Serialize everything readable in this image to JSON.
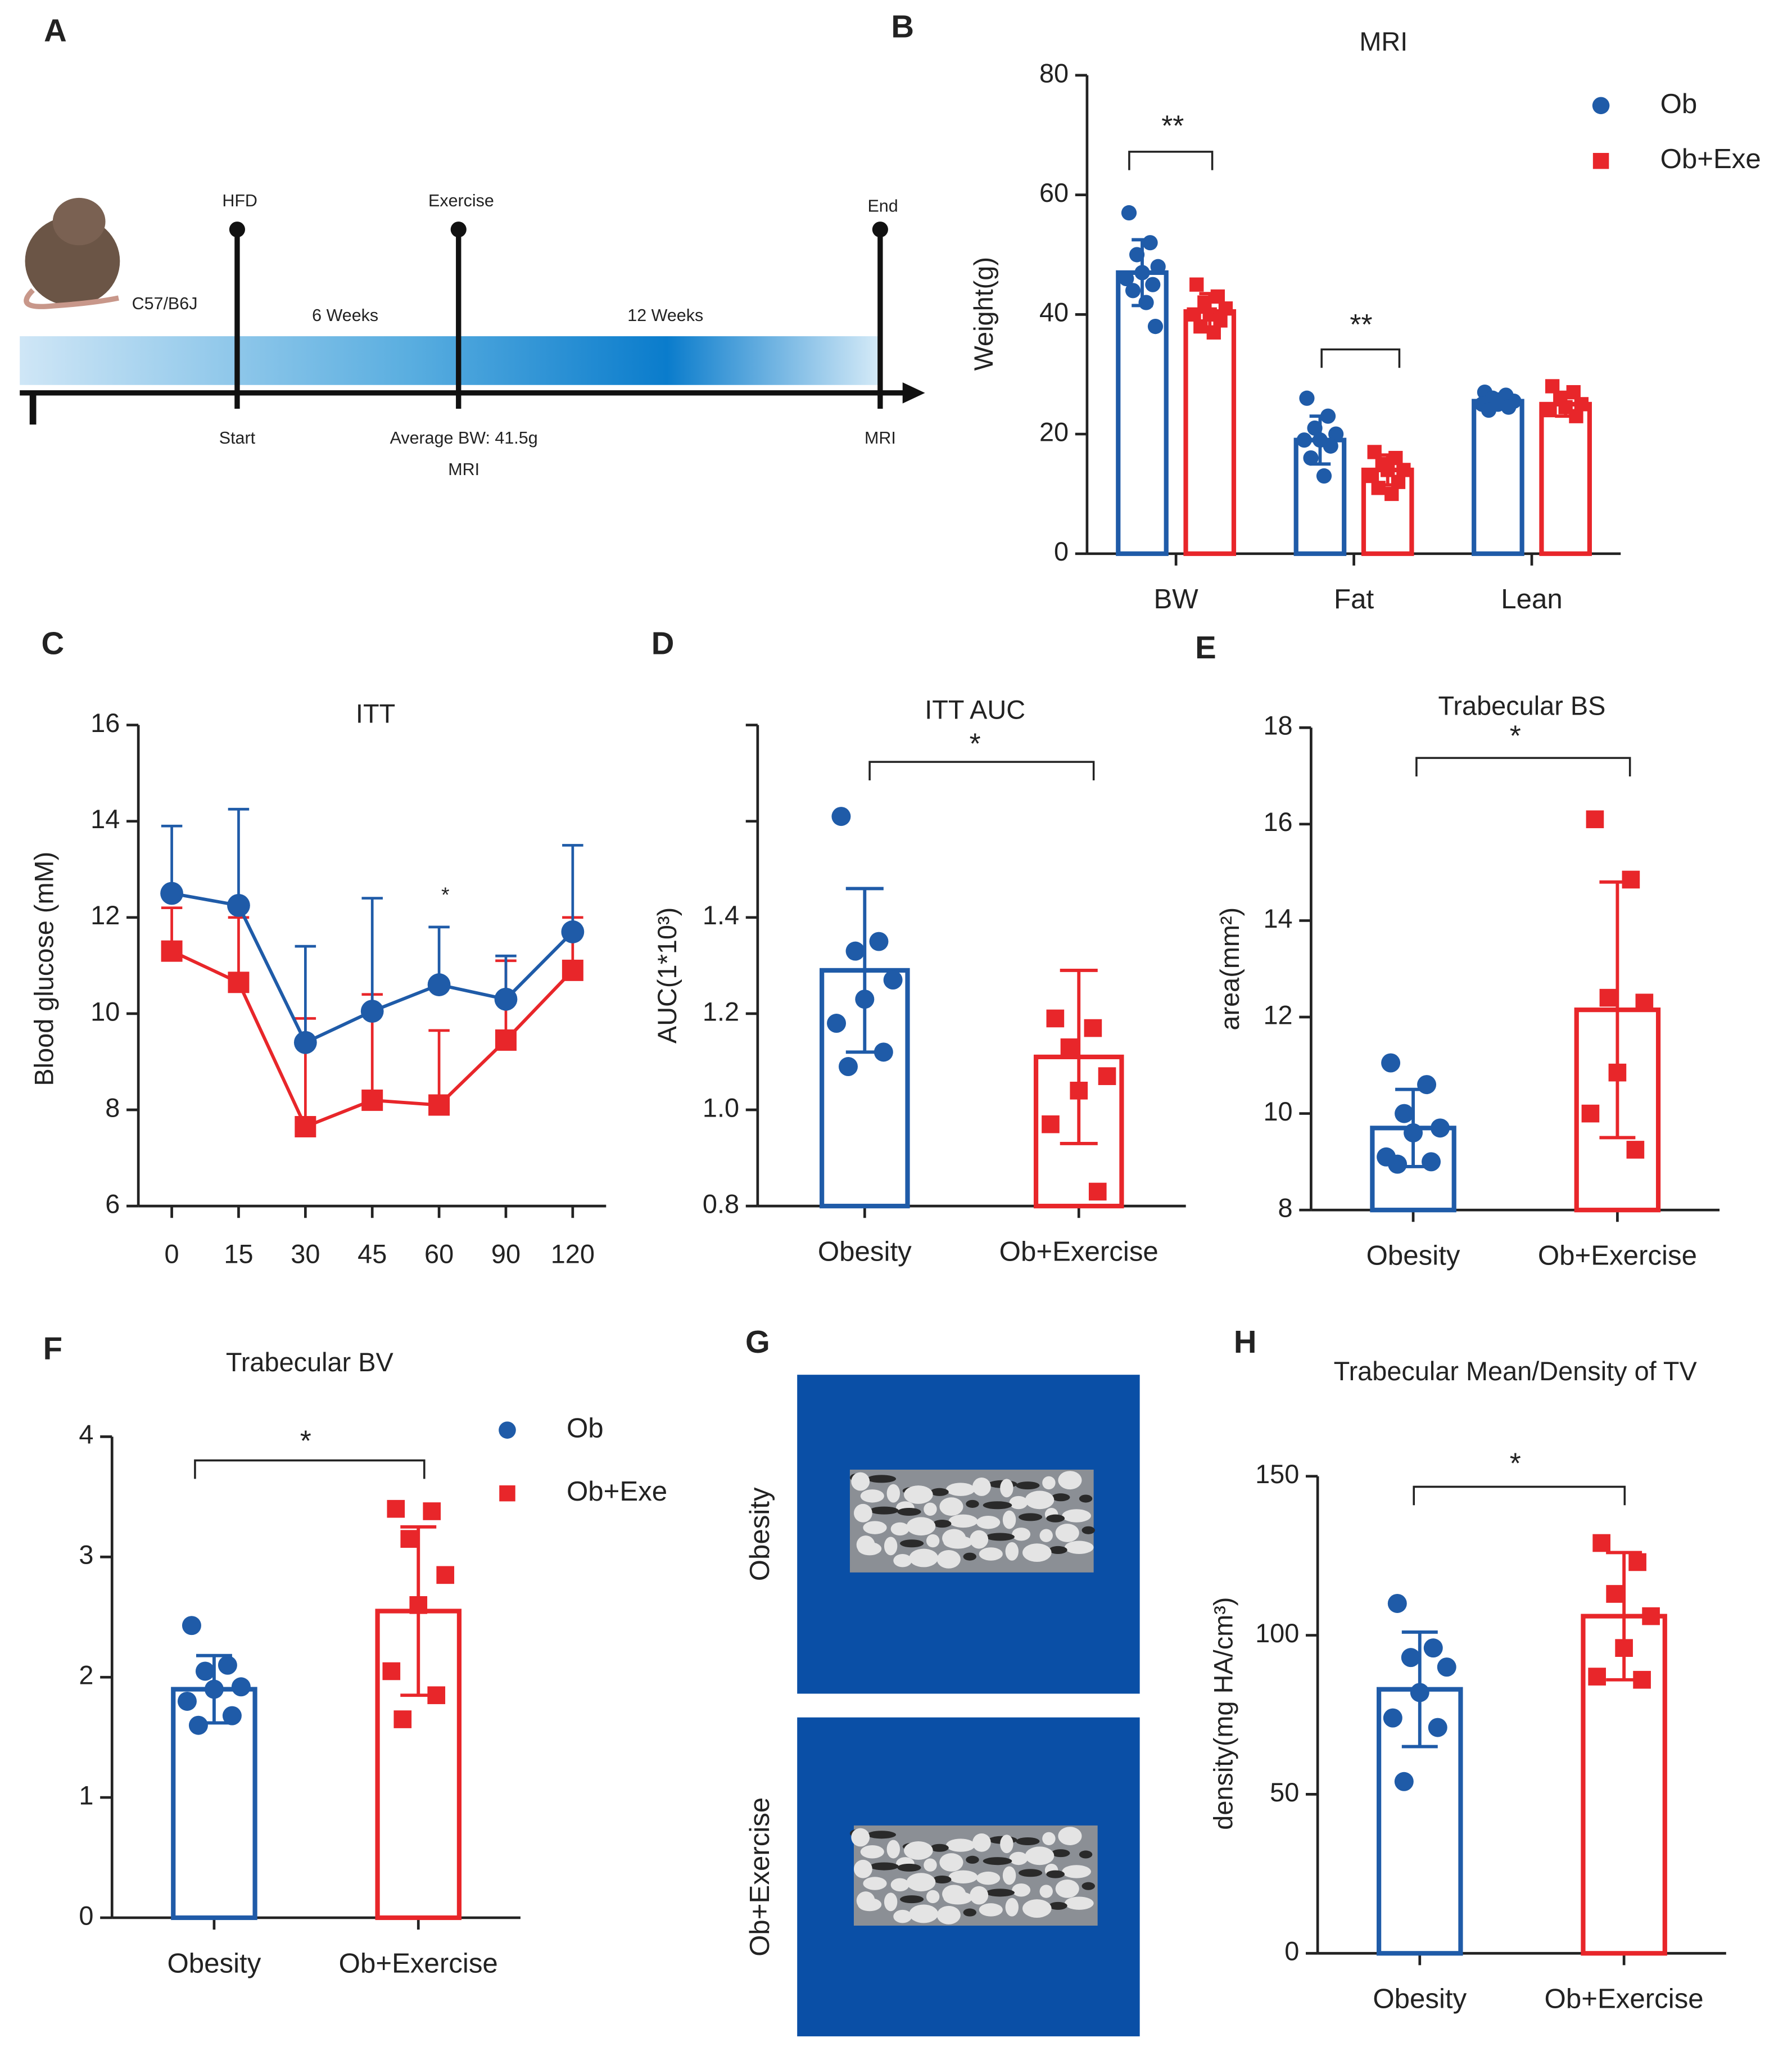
{
  "chart_data": [
    {
      "type": "timeline",
      "panel": "A",
      "strain": "C57/B6J",
      "periods": [
        "6 Weeks",
        "12 Weeks"
      ],
      "events": [
        {
          "label": "HFD",
          "below": [
            "Start"
          ]
        },
        {
          "label": "Exercise",
          "below": [
            "Average BW: 41.5g",
            "MRI"
          ]
        },
        {
          "label": "End",
          "below": [
            "MRI"
          ]
        }
      ]
    },
    {
      "type": "bar",
      "panel": "B",
      "title": "MRI",
      "ylabel": "Weight(g)",
      "categories": [
        "BW",
        "Fat",
        "Lean"
      ],
      "ylim": [
        0,
        80
      ],
      "yticks": [
        0,
        20,
        40,
        60,
        80
      ],
      "legend_position": "upper right",
      "annotations": [
        "**",
        "**"
      ],
      "series": [
        {
          "name": "Ob",
          "color": "#1f5ba8",
          "marker": "circle",
          "values": [
            47,
            19,
            25.5
          ],
          "errors": [
            5.5,
            4,
            1.2
          ],
          "points": [
            [
              57,
              52,
              50,
              48,
              47,
              46,
              45,
              44,
              42,
              38
            ],
            [
              26,
              23,
              21,
              20,
              19,
              19,
              18,
              16,
              13
            ],
            [
              27,
              26.5,
              26,
              25.5,
              25,
              25,
              24.5,
              24
            ]
          ]
        },
        {
          "name": "Ob+Exe",
          "color": "#e8262a",
          "marker": "square",
          "values": [
            40.5,
            14,
            25
          ],
          "errors": [
            3,
            2.5,
            2
          ],
          "points": [
            [
              45,
              43,
              42,
              41,
              40,
              40,
              39,
              38,
              37
            ],
            [
              17,
              16,
              15,
              14,
              14,
              13,
              12,
              11,
              10
            ],
            [
              28,
              27,
              26,
              25,
              24.5,
              24,
              23
            ]
          ]
        }
      ]
    },
    {
      "type": "line",
      "panel": "C",
      "title": "ITT",
      "ylabel": "Blood glucose (mM)",
      "categories": [
        "0",
        "15",
        "30",
        "45",
        "60",
        "90",
        "120"
      ],
      "ylim": [
        6,
        16
      ],
      "yticks": [
        6,
        8,
        10,
        12,
        14,
        16
      ],
      "annotations": [
        "*"
      ],
      "series": [
        {
          "color": "#1f5ba8",
          "marker": "circle",
          "values": [
            12.5,
            12.25,
            9.4,
            10.05,
            10.6,
            10.3,
            11.7
          ],
          "errors": [
            1.4,
            2.0,
            2.0,
            2.35,
            1.2,
            0.9,
            1.8
          ]
        },
        {
          "color": "#e8262a",
          "marker": "square",
          "values": [
            11.3,
            10.65,
            7.65,
            8.2,
            8.1,
            9.45,
            10.9
          ],
          "errors": [
            0.9,
            1.35,
            2.25,
            2.2,
            1.55,
            1.65,
            1.1
          ]
        }
      ]
    },
    {
      "type": "bar",
      "panel": "D",
      "title": "ITT AUC",
      "ylabel": "AUC(1*10³)",
      "categories": [
        "Obesity",
        "Ob+Exercise"
      ],
      "colors": [
        "#1f5ba8",
        "#e8262a"
      ],
      "markers": [
        "circle",
        "square"
      ],
      "values": [
        1.29,
        1.11
      ],
      "errors": [
        0.17,
        0.18
      ],
      "points": [
        [
          1.61,
          1.35,
          1.33,
          1.27,
          1.23,
          1.18,
          1.12,
          1.09
        ],
        [
          1.19,
          1.17,
          1.13,
          1.07,
          1.04,
          0.97,
          0.83
        ]
      ],
      "ylim": [
        0.8,
        1.8
      ],
      "yticks": [
        0.8,
        {
          "value": 1.0,
          "label": "1.0"
        },
        1.2,
        1.4,
        {
          "value": 1.6,
          "label": null
        },
        {
          "value": 1.8,
          "label": null
        }
      ],
      "annotations": [
        "*"
      ]
    },
    {
      "type": "bar",
      "panel": "E",
      "title": "Trabecular BS",
      "ylabel": "area(mm²)",
      "categories": [
        "Obesity",
        "Ob+Exercise"
      ],
      "colors": [
        "#1f5ba8",
        "#e8262a"
      ],
      "markers": [
        "circle",
        "square"
      ],
      "values": [
        9.7,
        12.15
      ],
      "errors": [
        0.8,
        2.65
      ],
      "points": [
        [
          11.05,
          10.6,
          10.0,
          9.7,
          9.6,
          9.1,
          9.0,
          8.95
        ],
        [
          16.1,
          14.85,
          12.4,
          12.3,
          10.85,
          10.0,
          9.25
        ]
      ],
      "ylim": [
        8,
        18
      ],
      "yticks": [
        8,
        10,
        12,
        14,
        16,
        18
      ],
      "annotations": [
        "*"
      ]
    },
    {
      "type": "bar",
      "panel": "F",
      "title": "Trabecular BV",
      "categories": [
        "Obesity",
        "Ob+Exercise"
      ],
      "colors": [
        "#1f5ba8",
        "#e8262a"
      ],
      "markers": [
        "circle",
        "square"
      ],
      "legend": [
        "Ob",
        "Ob+Exe"
      ],
      "legend_position": "upper right",
      "values": [
        1.9,
        2.55
      ],
      "errors": [
        0.28,
        0.7
      ],
      "points": [
        [
          2.43,
          2.1,
          2.05,
          1.92,
          1.9,
          1.8,
          1.68,
          1.6
        ],
        [
          3.4,
          3.38,
          3.15,
          2.85,
          2.6,
          2.05,
          1.85,
          1.65
        ]
      ],
      "ylim": [
        0,
        4
      ],
      "yticks": [
        0,
        1,
        2,
        3,
        4
      ],
      "annotations": [
        "*"
      ]
    },
    {
      "type": "image",
      "panel": "G",
      "labels": [
        "Obesity",
        "Ob+Exercise"
      ]
    },
    {
      "type": "bar",
      "panel": "H",
      "title": "Trabecular Mean/Density of TV",
      "ylabel": "density(mg HA/cm³)",
      "categories": [
        "Obesity",
        "Ob+Exercise"
      ],
      "colors": [
        "#1f5ba8",
        "#e8262a"
      ],
      "markers": [
        "circle",
        "square"
      ],
      "values": [
        83,
        106
      ],
      "errors": [
        18,
        20
      ],
      "points": [
        [
          110,
          96,
          93,
          90,
          82,
          74,
          71,
          54
        ],
        [
          129,
          123,
          113,
          106,
          96,
          87,
          86
        ]
      ],
      "ylim": [
        0,
        150
      ],
      "yticks": [
        0,
        50,
        100,
        150
      ],
      "annotations": [
        "*"
      ]
    }
  ]
}
